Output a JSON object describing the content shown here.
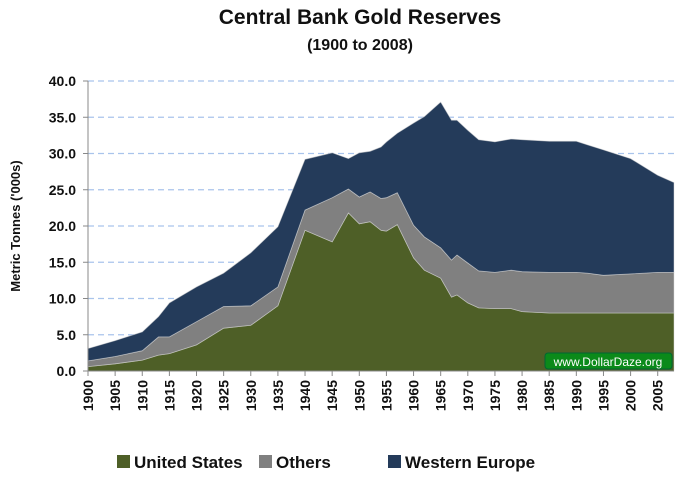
{
  "chart_data": {
    "type": "area",
    "stacked": true,
    "title": "Central Bank Gold Reserves",
    "subtitle": "(1900 to 2008)",
    "xlabel": "",
    "ylabel": "Metric Tonnes ('000s)",
    "xlim": [
      1900,
      2008
    ],
    "ylim": [
      0,
      40
    ],
    "y_ticks": [
      "0.0",
      "5.0",
      "10.0",
      "15.0",
      "20.0",
      "25.0",
      "30.0",
      "35.0",
      "40.0"
    ],
    "x_ticks": [
      "1900",
      "1905",
      "1910",
      "1915",
      "1920",
      "1925",
      "1930",
      "1935",
      "1940",
      "1945",
      "1950",
      "1955",
      "1960",
      "1965",
      "1970",
      "1975",
      "1980",
      "1985",
      "1990",
      "1995",
      "2000",
      "2005"
    ],
    "grid": "horizontal dashed",
    "legend_position": "bottom",
    "x": [
      1900,
      1905,
      1910,
      1913,
      1915,
      1920,
      1925,
      1930,
      1935,
      1940,
      1945,
      1948,
      1950,
      1952,
      1954,
      1955,
      1957,
      1960,
      1962,
      1965,
      1967,
      1968,
      1970,
      1972,
      1975,
      1978,
      1980,
      1985,
      1990,
      1992,
      1995,
      2000,
      2005,
      2008
    ],
    "series": [
      {
        "name": "United States",
        "color": "#4E5F27",
        "values": [
          0.6,
          1.0,
          1.5,
          2.2,
          2.4,
          3.6,
          5.9,
          6.3,
          9.0,
          19.4,
          17.8,
          21.8,
          20.3,
          20.6,
          19.4,
          19.3,
          20.2,
          15.6,
          13.9,
          12.8,
          10.2,
          10.5,
          9.4,
          8.7,
          8.6,
          8.6,
          8.2,
          8.0,
          8.0,
          8.0,
          8.0,
          8.0,
          8.0,
          8.0
        ]
      },
      {
        "name": "Others",
        "color": "#808080",
        "values": [
          0.8,
          1.0,
          1.3,
          2.5,
          2.3,
          3.2,
          3.0,
          2.7,
          2.6,
          2.8,
          6.1,
          3.3,
          3.7,
          4.1,
          4.4,
          4.6,
          4.4,
          4.5,
          4.6,
          4.2,
          5.1,
          5.5,
          5.5,
          5.1,
          5.0,
          5.3,
          5.5,
          5.6,
          5.6,
          5.5,
          5.2,
          5.4,
          5.6,
          5.6
        ]
      },
      {
        "name": "Western Europe",
        "color": "#243B5A",
        "values": [
          1.7,
          2.2,
          2.6,
          2.8,
          4.7,
          4.8,
          4.6,
          7.3,
          8.3,
          7.0,
          6.2,
          4.2,
          6.1,
          5.6,
          7.1,
          7.7,
          8.2,
          14.1,
          16.6,
          20.1,
          19.3,
          18.6,
          18.3,
          18.1,
          18.0,
          18.1,
          18.2,
          18.1,
          18.1,
          17.7,
          17.3,
          15.9,
          13.4,
          12.4
        ]
      }
    ],
    "watermark": "www.DollarDaze.org"
  }
}
